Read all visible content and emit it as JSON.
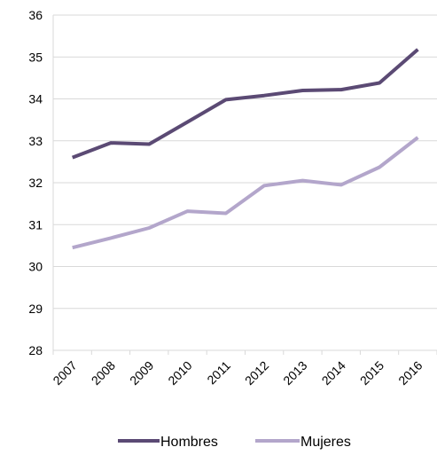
{
  "chart_data": {
    "type": "line",
    "title": "",
    "xlabel": "",
    "ylabel": "",
    "x": [
      "2007",
      "2008",
      "2009",
      "2010",
      "2011",
      "2012",
      "2013",
      "2014",
      "2015",
      "2016"
    ],
    "ylim": [
      28,
      36
    ],
    "yticks": [
      28,
      29,
      30,
      31,
      32,
      33,
      34,
      35,
      36
    ],
    "grid": "horizontal",
    "legend_position": "bottom",
    "series": [
      {
        "name": "Hombres",
        "color": "#5b4a74",
        "values": [
          32.6,
          32.95,
          32.92,
          33.45,
          33.98,
          34.08,
          34.2,
          34.22,
          34.38,
          35.18
        ]
      },
      {
        "name": "Mujeres",
        "color": "#b3a6cb",
        "values": [
          30.45,
          30.68,
          30.92,
          31.32,
          31.27,
          31.93,
          32.05,
          31.95,
          32.37,
          33.08
        ]
      }
    ]
  }
}
